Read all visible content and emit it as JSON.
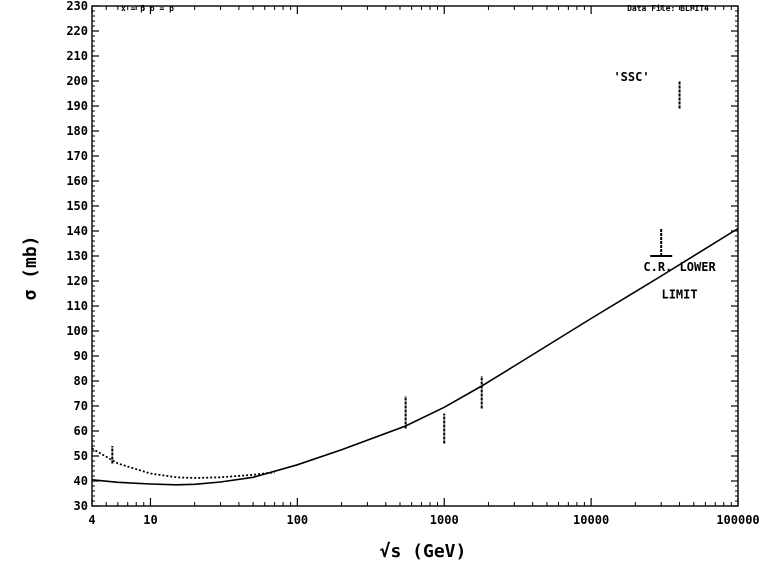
{
  "chart_data": {
    "type": "line",
    "title": "",
    "header_left": "x = p̄   o = p",
    "header_right": "Data File: BLFIT4",
    "xlabel": "√s   (GeV)",
    "ylabel": "σ   (mb)",
    "x_scale": "log",
    "xlim": [
      4,
      100000
    ],
    "ylim": [
      30,
      230
    ],
    "x_ticks": [
      4,
      10,
      100,
      1000,
      10000,
      100000
    ],
    "x_tick_labels": [
      "4",
      "10",
      "100",
      "1000",
      "10000",
      "100000"
    ],
    "y_ticks": [
      30,
      40,
      50,
      60,
      70,
      80,
      90,
      100,
      110,
      120,
      130,
      140,
      150,
      160,
      170,
      180,
      190,
      200,
      210,
      220,
      230
    ],
    "y_tick_labels": [
      "30",
      "40",
      "50",
      "60",
      "70",
      "80",
      "90",
      "100",
      "110",
      "120",
      "130",
      "140",
      "150",
      "160",
      "170",
      "180",
      "190",
      "200",
      "210",
      "220",
      "230"
    ],
    "grid": false,
    "series": [
      {
        "style": "solid",
        "x": [
          4,
          6,
          10,
          15,
          20,
          30,
          50,
          100,
          200,
          546,
          1000,
          1800,
          3000,
          10000,
          30000,
          100000
        ],
        "y": [
          40.5,
          39.5,
          38.8,
          38.5,
          38.7,
          39.6,
          41.5,
          46.5,
          52.5,
          62,
          69.5,
          78,
          86,
          105,
          122,
          141
        ]
      },
      {
        "style": "dotted",
        "x": [
          4,
          6,
          10,
          15,
          20,
          30,
          50,
          70
        ],
        "y": [
          53,
          47,
          43,
          41.5,
          41.2,
          41.5,
          42.5,
          43.5
        ]
      }
    ],
    "error_bars": [
      {
        "x": 5.5,
        "y_low": 47,
        "y_high": 54
      },
      {
        "x": 546,
        "y_low": 61,
        "y_high": 74
      },
      {
        "x": 1000,
        "y_low": 55,
        "y_high": 67
      },
      {
        "x": 1800,
        "y_low": 69,
        "y_high": 82
      },
      {
        "x": 30000,
        "y_low": 130,
        "y_high": 141
      },
      {
        "x": 40000,
        "y_low": 189,
        "y_high": 200
      }
    ],
    "lower_limit_marker": {
      "x": 30000,
      "y": 130
    },
    "annotations": [
      {
        "text": "'SSC'",
        "x": 25000,
        "y": 200
      },
      {
        "text": "C.R. LOWER",
        "x": 40000,
        "y": 124
      },
      {
        "text": "LIMIT",
        "x": 40000,
        "y": 113
      }
    ]
  }
}
